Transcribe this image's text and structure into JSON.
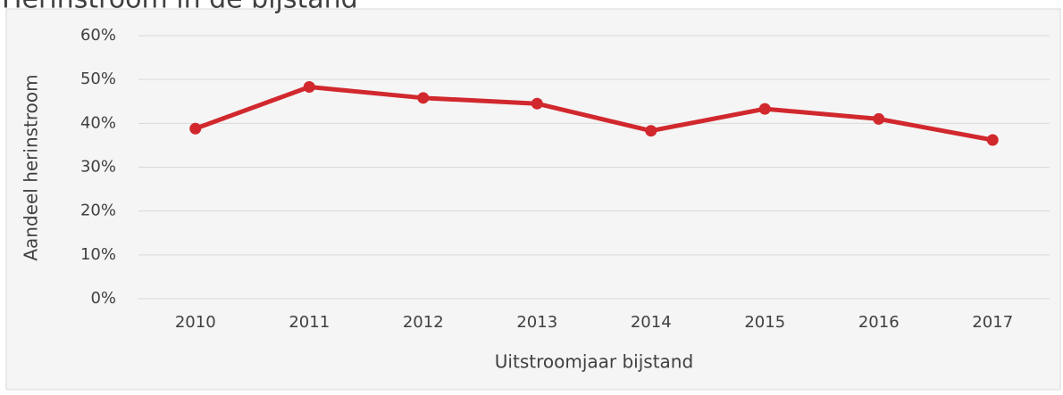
{
  "chart_data": {
    "type": "line",
    "title": "Herinstroom in de bijstand",
    "x_label": "Uitstroomjaar bijstand",
    "y_label": "Aandeel herinstroom",
    "categories": [
      "2010",
      "2011",
      "2012",
      "2013",
      "2014",
      "2015",
      "2016",
      "2017"
    ],
    "series": [
      {
        "name": "Aandeel herinstroom",
        "color": "#d1282e",
        "values": [
          38.8,
          48.3,
          45.8,
          44.5,
          38.3,
          43.3,
          41.0,
          36.2
        ]
      }
    ],
    "ylim": [
      0,
      60
    ],
    "yticks": [
      {
        "value": 0,
        "label": "0%"
      },
      {
        "value": 10,
        "label": "10%"
      },
      {
        "value": 20,
        "label": "20%"
      },
      {
        "value": 30,
        "label": "30%"
      },
      {
        "value": 40,
        "label": "40%"
      },
      {
        "value": 50,
        "label": "50%"
      },
      {
        "value": 60,
        "label": "60%"
      }
    ],
    "grid": true
  }
}
